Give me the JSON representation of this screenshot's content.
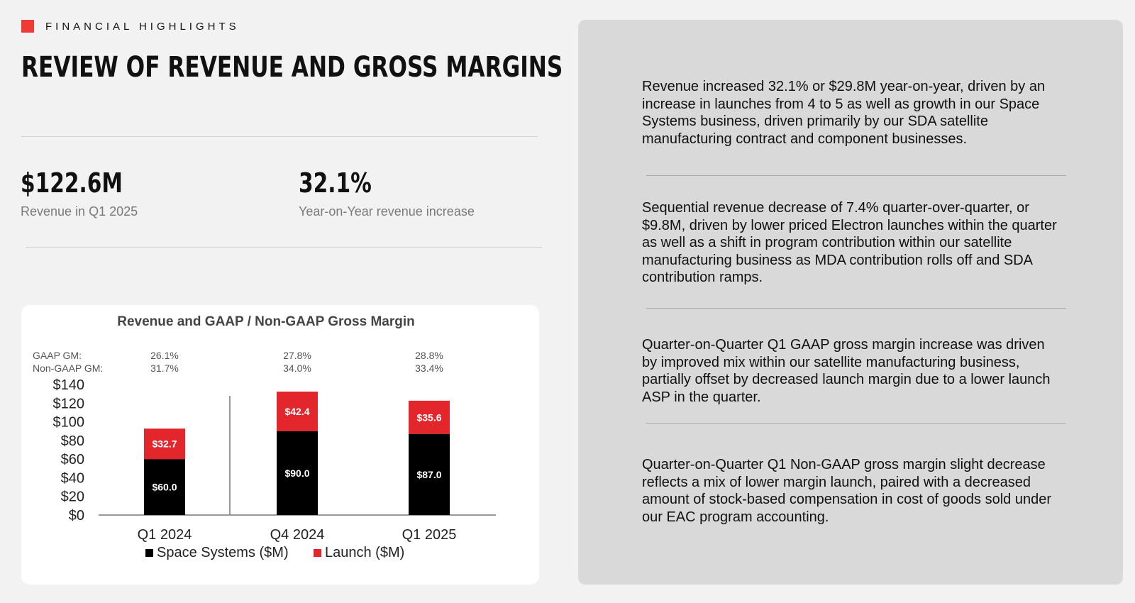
{
  "header": {
    "eyebrow": "FINANCIAL HIGHLIGHTS",
    "title": "REVIEW OF REVENUE AND GROSS MARGINS",
    "accent_color": "#ee3b36"
  },
  "metrics": [
    {
      "value": "$122.6M",
      "label": "Revenue in Q1 2025"
    },
    {
      "value": "32.1%",
      "label": "Year-on-Year revenue increase"
    }
  ],
  "chart_data": {
    "type": "bar",
    "stacked": true,
    "title": "Revenue and GAAP / Non-GAAP Gross Margin",
    "categories": [
      "Q1 2024",
      "Q4 2024",
      "Q1 2025"
    ],
    "series": [
      {
        "name": "Space Systems ($M)",
        "color": "#000000",
        "values": [
          60.0,
          90.0,
          87.0
        ],
        "labels": [
          "$60.0",
          "$90.0",
          "$87.0"
        ]
      },
      {
        "name": "Launch ($M)",
        "color": "#e3262b",
        "values": [
          32.7,
          42.4,
          35.6
        ],
        "labels": [
          "$32.7",
          "$42.4",
          "$35.6"
        ]
      }
    ],
    "ylim": [
      0,
      140
    ],
    "yticks": [
      "$0",
      "$20",
      "$40",
      "$60",
      "$80",
      "$100",
      "$120",
      "$140"
    ],
    "margin_rows": {
      "labels": [
        "GAAP GM:",
        "Non-GAAP GM:"
      ],
      "gaap": [
        "26.1%",
        "27.8%",
        "28.8%"
      ],
      "non_gaap": [
        "31.7%",
        "34.0%",
        "33.4%"
      ]
    },
    "legend_position": "bottom",
    "grid": false
  },
  "panel": {
    "paragraphs": [
      "Revenue increased 32.1% or $29.8M year-on-year, driven by an increase in launches from 4 to 5 as well as growth in our Space Systems business, driven primarily by our SDA satellite manufacturing contract and component businesses.",
      "Sequential revenue decrease of 7.4% quarter-over-quarter, or $9.8M, driven by lower priced Electron launches within the quarter as well as a shift in program contribution within our satellite manufacturing business as MDA contribution rolls off and SDA contribution ramps.",
      "Quarter-on-Quarter Q1 GAAP gross margin increase was driven by improved mix within our satellite manufacturing business, partially offset by decreased launch margin due to a lower launch ASP in the quarter.",
      "Quarter-on-Quarter Q1 Non-GAAP gross margin slight decrease reflects a mix of lower margin launch, paired with a decreased amount of stock-based compensation in cost of goods sold under our EAC program accounting."
    ]
  }
}
